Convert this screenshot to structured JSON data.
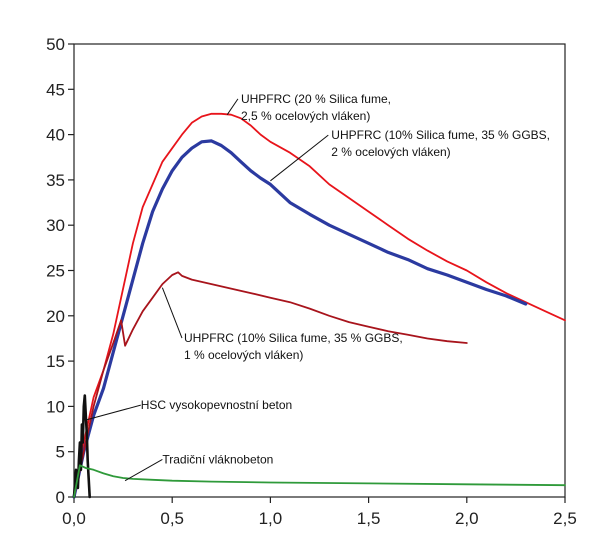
{
  "chart_data": {
    "type": "line",
    "title": "",
    "xlabel": "",
    "ylabel": "",
    "xlim": [
      0,
      2.5
    ],
    "ylim": [
      0,
      50
    ],
    "x_ticks": [
      0,
      0.5,
      1.0,
      1.5,
      2.0,
      2.5
    ],
    "x_tick_labels": [
      "0,0",
      "0,5",
      "1,0",
      "1,5",
      "2,0",
      "2,5"
    ],
    "y_ticks": [
      0,
      5,
      10,
      15,
      20,
      25,
      30,
      35,
      40,
      45,
      50
    ],
    "y_tick_labels": [
      "0",
      "5",
      "10",
      "15",
      "20",
      "25",
      "30",
      "35",
      "40",
      "45",
      "50"
    ],
    "grid": false,
    "legend": "none",
    "series": [
      {
        "color": "#e8141b",
        "points": [
          [
            0,
            0
          ],
          [
            0.05,
            6
          ],
          [
            0.1,
            11
          ],
          [
            0.15,
            14
          ],
          [
            0.2,
            18
          ],
          [
            0.25,
            23
          ],
          [
            0.3,
            28
          ],
          [
            0.35,
            32
          ],
          [
            0.4,
            34.5
          ],
          [
            0.45,
            37
          ],
          [
            0.5,
            38.5
          ],
          [
            0.55,
            40
          ],
          [
            0.6,
            41.3
          ],
          [
            0.65,
            42
          ],
          [
            0.7,
            42.3
          ],
          [
            0.75,
            42.3
          ],
          [
            0.8,
            42.2
          ],
          [
            0.85,
            41.8
          ],
          [
            0.9,
            41
          ],
          [
            0.95,
            40
          ],
          [
            1.0,
            39.2
          ],
          [
            1.1,
            38
          ],
          [
            1.2,
            36.5
          ],
          [
            1.3,
            34.5
          ],
          [
            1.4,
            33
          ],
          [
            1.5,
            31.5
          ],
          [
            1.6,
            30
          ],
          [
            1.7,
            28.5
          ],
          [
            1.8,
            27.2
          ],
          [
            1.9,
            26
          ],
          [
            2.0,
            25
          ],
          [
            2.1,
            23.7
          ],
          [
            2.2,
            22.5
          ],
          [
            2.3,
            21.5
          ],
          [
            2.4,
            20.5
          ],
          [
            2.5,
            19.5
          ]
        ]
      },
      {
        "color": "#2b3aa0",
        "points": [
          [
            0,
            0
          ],
          [
            0.05,
            5
          ],
          [
            0.1,
            9
          ],
          [
            0.15,
            12
          ],
          [
            0.2,
            16
          ],
          [
            0.25,
            20
          ],
          [
            0.3,
            24
          ],
          [
            0.35,
            28
          ],
          [
            0.4,
            31.5
          ],
          [
            0.45,
            34
          ],
          [
            0.5,
            36
          ],
          [
            0.55,
            37.5
          ],
          [
            0.6,
            38.5
          ],
          [
            0.65,
            39.2
          ],
          [
            0.7,
            39.3
          ],
          [
            0.75,
            38.8
          ],
          [
            0.8,
            38
          ],
          [
            0.85,
            37
          ],
          [
            0.9,
            36
          ],
          [
            0.95,
            35.2
          ],
          [
            1.0,
            34.5
          ],
          [
            1.1,
            32.5
          ],
          [
            1.2,
            31.2
          ],
          [
            1.3,
            30
          ],
          [
            1.4,
            29
          ],
          [
            1.5,
            28
          ],
          [
            1.6,
            27
          ],
          [
            1.7,
            26.2
          ],
          [
            1.8,
            25.2
          ],
          [
            1.9,
            24.5
          ],
          [
            2.0,
            23.7
          ],
          [
            2.1,
            22.9
          ],
          [
            2.2,
            22.2
          ],
          [
            2.3,
            21.3
          ]
        ]
      },
      {
        "color": "#a8141c",
        "points": [
          [
            0,
            0
          ],
          [
            0.05,
            5
          ],
          [
            0.1,
            10
          ],
          [
            0.15,
            14
          ],
          [
            0.2,
            17
          ],
          [
            0.24,
            19.5
          ],
          [
            0.26,
            16.7
          ],
          [
            0.3,
            18.5
          ],
          [
            0.35,
            20.5
          ],
          [
            0.4,
            22
          ],
          [
            0.45,
            23.5
          ],
          [
            0.5,
            24.5
          ],
          [
            0.53,
            24.8
          ],
          [
            0.55,
            24.4
          ],
          [
            0.6,
            24
          ],
          [
            0.7,
            23.5
          ],
          [
            0.8,
            23
          ],
          [
            0.9,
            22.5
          ],
          [
            1.0,
            22
          ],
          [
            1.1,
            21.5
          ],
          [
            1.2,
            20.8
          ],
          [
            1.3,
            20
          ],
          [
            1.4,
            19.3
          ],
          [
            1.5,
            18.8
          ],
          [
            1.6,
            18.3
          ],
          [
            1.7,
            17.9
          ],
          [
            1.8,
            17.5
          ],
          [
            1.9,
            17.2
          ],
          [
            2.0,
            17
          ]
        ]
      },
      {
        "color": "#111111",
        "points": [
          [
            0,
            0
          ],
          [
            0.01,
            3
          ],
          [
            0.02,
            1
          ],
          [
            0.025,
            4
          ],
          [
            0.03,
            6
          ],
          [
            0.035,
            3
          ],
          [
            0.04,
            8
          ],
          [
            0.045,
            6
          ],
          [
            0.05,
            10
          ],
          [
            0.055,
            11.2
          ],
          [
            0.06,
            9
          ],
          [
            0.065,
            7
          ],
          [
            0.07,
            4
          ],
          [
            0.075,
            2
          ],
          [
            0.08,
            0
          ]
        ]
      },
      {
        "color": "#2f9a3a",
        "points": [
          [
            0,
            0
          ],
          [
            0.03,
            3.5
          ],
          [
            0.06,
            3.2
          ],
          [
            0.1,
            3
          ],
          [
            0.15,
            2.6
          ],
          [
            0.2,
            2.3
          ],
          [
            0.25,
            2.1
          ],
          [
            0.3,
            2
          ],
          [
            0.4,
            1.9
          ],
          [
            0.5,
            1.8
          ],
          [
            0.7,
            1.7
          ],
          [
            1.0,
            1.6
          ],
          [
            1.5,
            1.5
          ],
          [
            2.0,
            1.4
          ],
          [
            2.5,
            1.3
          ]
        ]
      }
    ],
    "annotations": [
      {
        "lines": [
          "UHPFRC (20 % Silica fume,",
          "2,5 % ocelových vláken)"
        ],
        "anchor": [
          0.85,
          43.5
        ],
        "target": [
          0.78,
          42.2
        ],
        "dx": -3
      },
      {
        "lines": [
          "UHPFRC (10% Silica fume, 35 % GGBS,",
          "2 % ocelových vláken)"
        ],
        "anchor": [
          1.31,
          39.5
        ],
        "target": [
          1.0,
          34.9
        ],
        "dx": -3
      },
      {
        "lines": [
          "UHPFRC (10% Silica fume, 35 % GGBS,",
          "1 % ocelových vláken)"
        ],
        "anchor": [
          0.56,
          17.1
        ],
        "target": [
          0.45,
          23.1
        ],
        "dx": -2
      },
      {
        "lines": [
          "HSC vysokopevnostní beton"
        ],
        "anchor": [
          0.34,
          9.7
        ],
        "target": [
          0.06,
          8.5
        ],
        "dx": 0
      },
      {
        "lines": [
          "Tradiční vláknobeton"
        ],
        "anchor": [
          0.45,
          3.7
        ],
        "target": [
          0.26,
          1.8
        ],
        "dx": 0
      }
    ]
  }
}
